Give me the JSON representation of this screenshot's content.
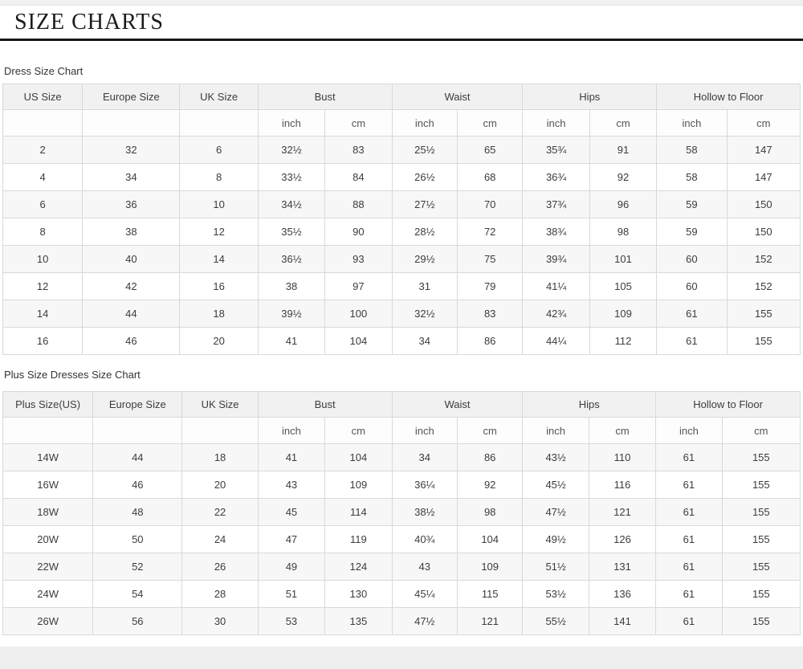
{
  "page": {
    "title": "SIZE CHARTS"
  },
  "tables": [
    {
      "label": "Dress Size Chart",
      "size_col_header": "US Size",
      "europe_col_header": "Europe Size",
      "uk_col_header": "UK Size",
      "groups": [
        "Bust",
        "Waist",
        "Hips",
        "Hollow to Floor"
      ],
      "unit_inch": "inch",
      "unit_cm": "cm",
      "rows": [
        [
          "2",
          "32",
          "6",
          "32½",
          "83",
          "25½",
          "65",
          "35¾",
          "91",
          "58",
          "147"
        ],
        [
          "4",
          "34",
          "8",
          "33½",
          "84",
          "26½",
          "68",
          "36¾",
          "92",
          "58",
          "147"
        ],
        [
          "6",
          "36",
          "10",
          "34½",
          "88",
          "27½",
          "70",
          "37¾",
          "96",
          "59",
          "150"
        ],
        [
          "8",
          "38",
          "12",
          "35½",
          "90",
          "28½",
          "72",
          "38¾",
          "98",
          "59",
          "150"
        ],
        [
          "10",
          "40",
          "14",
          "36½",
          "93",
          "29½",
          "75",
          "39¾",
          "101",
          "60",
          "152"
        ],
        [
          "12",
          "42",
          "16",
          "38",
          "97",
          "31",
          "79",
          "41¼",
          "105",
          "60",
          "152"
        ],
        [
          "14",
          "44",
          "18",
          "39½",
          "100",
          "32½",
          "83",
          "42¾",
          "109",
          "61",
          "155"
        ],
        [
          "16",
          "46",
          "20",
          "41",
          "104",
          "34",
          "86",
          "44¼",
          "112",
          "61",
          "155"
        ]
      ]
    },
    {
      "label": "Plus Size Dresses Size Chart",
      "size_col_header": "Plus Size(US)",
      "europe_col_header": "Europe Size",
      "uk_col_header": "UK Size",
      "groups": [
        "Bust",
        "Waist",
        "Hips",
        "Hollow to Floor"
      ],
      "unit_inch": "inch",
      "unit_cm": "cm",
      "rows": [
        [
          "14W",
          "44",
          "18",
          "41",
          "104",
          "34",
          "86",
          "43½",
          "110",
          "61",
          "155"
        ],
        [
          "16W",
          "46",
          "20",
          "43",
          "109",
          "36¼",
          "92",
          "45½",
          "116",
          "61",
          "155"
        ],
        [
          "18W",
          "48",
          "22",
          "45",
          "114",
          "38½",
          "98",
          "47½",
          "121",
          "61",
          "155"
        ],
        [
          "20W",
          "50",
          "24",
          "47",
          "119",
          "40¾",
          "104",
          "49½",
          "126",
          "61",
          "155"
        ],
        [
          "22W",
          "52",
          "26",
          "49",
          "124",
          "43",
          "109",
          "51½",
          "131",
          "61",
          "155"
        ],
        [
          "24W",
          "54",
          "28",
          "51",
          "130",
          "45¼",
          "115",
          "53½",
          "136",
          "61",
          "155"
        ],
        [
          "26W",
          "56",
          "30",
          "53",
          "135",
          "47½",
          "121",
          "55½",
          "141",
          "61",
          "155"
        ]
      ]
    }
  ]
}
